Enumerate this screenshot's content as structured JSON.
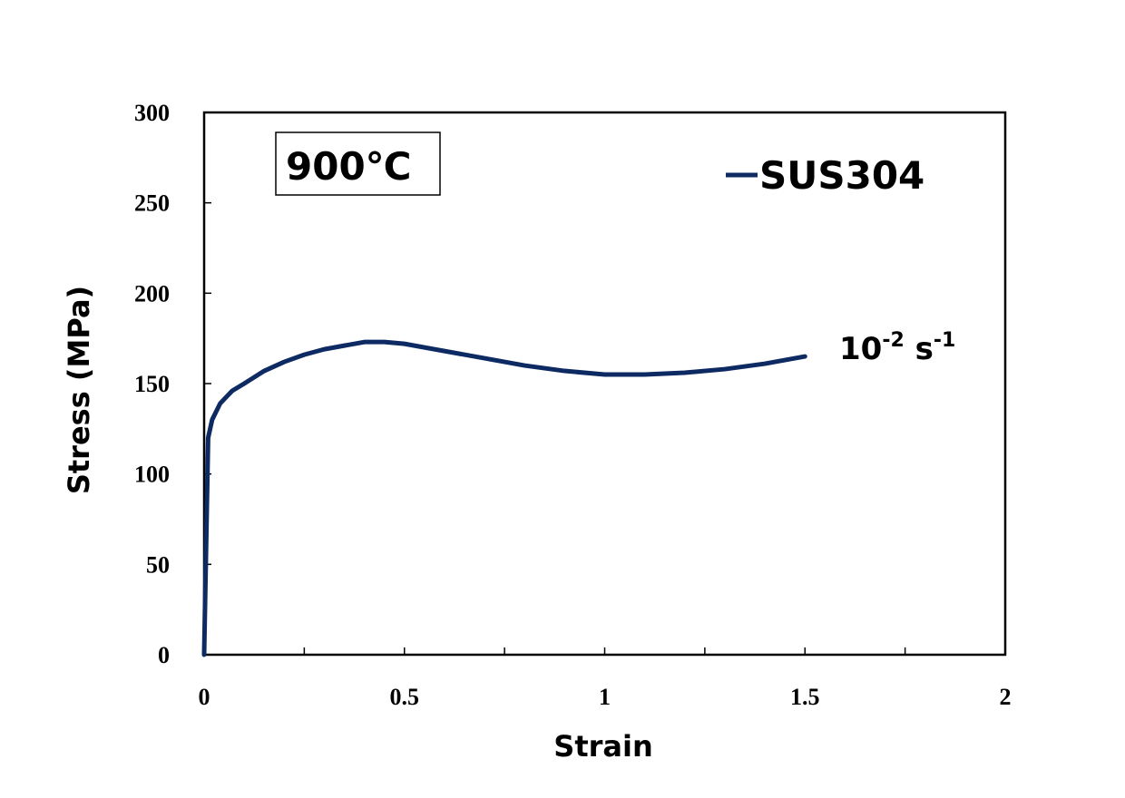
{
  "chart_data": {
    "type": "line",
    "x_label": "Strain",
    "y_label": "Stress (MPa)",
    "annotations": {
      "temperature": "900℃",
      "rate": {
        "base": "10",
        "exp": "-2",
        "unit": " s",
        "unit_exp": "-1"
      }
    },
    "x": [
      0,
      0.005,
      0.01,
      0.02,
      0.04,
      0.07,
      0.1,
      0.15,
      0.2,
      0.25,
      0.3,
      0.35,
      0.4,
      0.45,
      0.5,
      0.6,
      0.7,
      0.8,
      0.9,
      1.0,
      1.1,
      1.2,
      1.3,
      1.4,
      1.5
    ],
    "series": [
      {
        "name": "SUS304",
        "color": "#0d2a63",
        "values": [
          0,
          60,
          120,
          130,
          139,
          146,
          150,
          157,
          162,
          166,
          169,
          171,
          173,
          173,
          172,
          168,
          164,
          160,
          157,
          155,
          155,
          156,
          158,
          161,
          165
        ]
      }
    ],
    "xlim": [
      0,
      2
    ],
    "xticks": [
      0,
      0.5,
      1,
      1.5,
      2
    ],
    "xminorticks": [
      0.25,
      0.75,
      1.25,
      1.75
    ],
    "ylim": [
      0,
      300
    ],
    "yticks": [
      0,
      50,
      100,
      150,
      200,
      250,
      300
    ],
    "grid": false
  }
}
